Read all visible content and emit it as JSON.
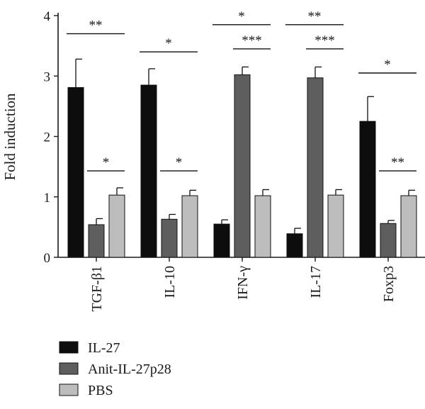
{
  "chart_data": {
    "type": "bar",
    "ylabel": "Fold induction",
    "xlabel": "",
    "ylim": [
      0,
      4
    ],
    "yticks": [
      "0",
      "1",
      "2",
      "3",
      "4"
    ],
    "categories": [
      "TGF-β1",
      "IL-10",
      "IFN-γ",
      "IL-17",
      "Foxp3"
    ],
    "series": [
      {
        "name": "IL-27",
        "color": "#0d0d0d",
        "values": [
          2.81,
          2.85,
          0.55,
          0.39,
          2.25
        ],
        "errors": [
          0.47,
          0.27,
          0.07,
          0.09,
          0.41
        ]
      },
      {
        "name": "Anit-IL-27p28",
        "color": "#5e5e5e",
        "values": [
          0.54,
          0.63,
          3.02,
          2.97,
          0.56
        ],
        "errors": [
          0.1,
          0.08,
          0.13,
          0.18,
          0.05
        ]
      },
      {
        "name": "PBS",
        "color": "#bdbdbd",
        "values": [
          1.03,
          1.02,
          1.02,
          1.03,
          1.02
        ],
        "errors": [
          0.12,
          0.09,
          0.1,
          0.09,
          0.09
        ]
      }
    ],
    "significance": [
      {
        "category": 0,
        "from": 0,
        "to": 2,
        "y": 3.7,
        "label": "**"
      },
      {
        "category": 0,
        "from": 1,
        "to": 2,
        "y": 1.43,
        "label": "*"
      },
      {
        "category": 1,
        "from": 0,
        "to": 2,
        "y": 3.4,
        "label": "*"
      },
      {
        "category": 1,
        "from": 1,
        "to": 2,
        "y": 1.43,
        "label": "*"
      },
      {
        "category": 2,
        "from": 0,
        "to": 2,
        "y": 3.85,
        "label": "*"
      },
      {
        "category": 2,
        "from": 1,
        "to": 2,
        "y": 3.45,
        "label": "***"
      },
      {
        "category": 3,
        "from": 0,
        "to": 2,
        "y": 3.85,
        "label": "**"
      },
      {
        "category": 3,
        "from": 1,
        "to": 2,
        "y": 3.45,
        "label": "***"
      },
      {
        "category": 4,
        "from": 0,
        "to": 2,
        "y": 3.05,
        "label": "*"
      },
      {
        "category": 4,
        "from": 1,
        "to": 2,
        "y": 1.43,
        "label": "**"
      }
    ],
    "legend": "bottom-left"
  }
}
